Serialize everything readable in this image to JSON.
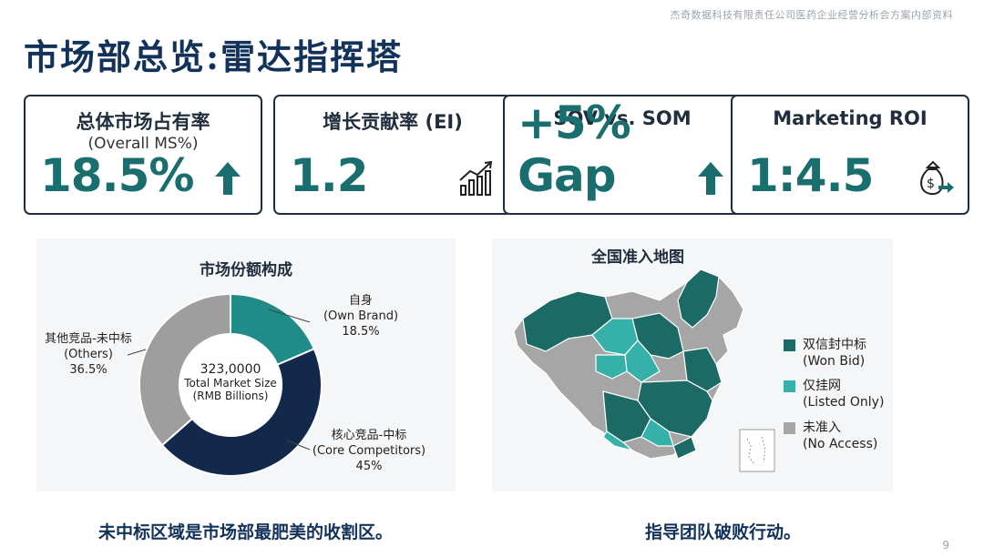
{
  "header_note": "杰奇数据科技有限责任公司医药企业经营分析会方案内部资料",
  "page_title": "市场部总览:雷达指挥塔",
  "kpis": [
    {
      "label": "总体市场占有率",
      "sublabel": "(Overall MS%)",
      "value": "18.5%",
      "icon": "arrow-up-icon"
    },
    {
      "label": "增长贡献率 (EI)",
      "sublabel": "",
      "value": "1.2",
      "icon": "growth-chart-icon"
    },
    {
      "label": "SOV vs. SOM",
      "sublabel": "",
      "value": "+5% Gap",
      "icon": "arrow-up-icon"
    },
    {
      "label": "Marketing ROI",
      "sublabel": "",
      "value": "1:4.5",
      "icon": "money-bag-icon"
    }
  ],
  "colors": {
    "teal_dark": "#1b6a66",
    "teal_light": "#35b1aa",
    "navy": "#13294b",
    "gray": "#a3a3a3",
    "accent_text": "#1a6e6e",
    "title_blue": "#12325a"
  },
  "donut": {
    "title": "市场份额构成",
    "center_lines": [
      "323,0000",
      "Total Market Size",
      "(RMB Billions)"
    ],
    "segments": [
      {
        "label_cn": "自身",
        "label_en": "(Own Brand)",
        "pct_text": "18.5%",
        "value": 18.5,
        "color": "#1f8c87"
      },
      {
        "label_cn": "核心竞品-中标",
        "label_en": "(Core Competitors)",
        "pct_text": "45%",
        "value": 45,
        "color": "#13294b"
      },
      {
        "label_cn": "其他竞品-未中标",
        "label_en": "(Others)",
        "pct_text": "36.5%",
        "value": 36.5,
        "color": "#9e9e9e"
      }
    ]
  },
  "map": {
    "title": "全国准入地图",
    "legend": [
      {
        "label_cn": "双信封中标",
        "label_en": "(Won Bid)",
        "color": "#1b6a66"
      },
      {
        "label_cn": "仅挂网",
        "label_en": "(Listed Only)",
        "color": "#35b1aa"
      },
      {
        "label_cn": "未准入",
        "label_en": "(No Access)",
        "color": "#a6a6a6"
      }
    ]
  },
  "captions": {
    "left": "未中标区域是市场部最肥美的收割区。",
    "right": "指导团队破败行动。"
  },
  "page_number": "9"
}
